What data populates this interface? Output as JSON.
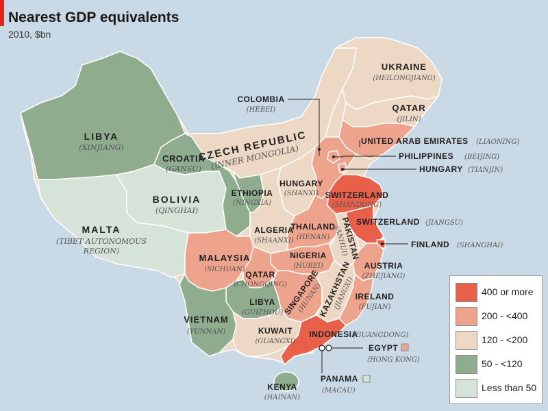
{
  "header": {
    "title": "Nearest GDP equivalents",
    "subtitle": "2010, $bn"
  },
  "colors": {
    "c400": "#e8604a",
    "c200": "#eea38c",
    "c120": "#ecd8c4",
    "c50": "#8fac8f",
    "c0": "#d5e3d8",
    "sea": "#c9d9e6"
  },
  "legend": {
    "items": [
      {
        "label": "400 or more",
        "color": "#e8604a"
      },
      {
        "label": "200 - <400",
        "color": "#eea38c"
      },
      {
        "label": "120 - <200",
        "color": "#ecd8c4"
      },
      {
        "label": "50 - <120",
        "color": "#8fac8f"
      },
      {
        "label": "Less than 50",
        "color": "#d5e3d8"
      }
    ]
  },
  "regions": {
    "xinjiang": {
      "country": "LIBYA",
      "province": "(XINJIANG)"
    },
    "tibet": {
      "country": "MALTA",
      "province_lines": [
        "(TIBET AUTONOMOUS",
        "REGION)"
      ]
    },
    "qinghai": {
      "country": "BOLIVIA",
      "province": "(QINGHAI)"
    },
    "gansu": {
      "country": "CROATIA",
      "province": "(GANSU)"
    },
    "innermongolia": {
      "country": "CZECH REPUBLIC",
      "province": "(INNER MONGOLIA)"
    },
    "ningxia": {
      "country": "ETHIOPIA",
      "province": "(NINGXIA)"
    },
    "shanxi": {
      "country": "HUNGARY",
      "province": "(SHANXI)"
    },
    "shaanxi": {
      "country": "ALGERIA",
      "province": "(SHAANXI)"
    },
    "henan": {
      "country": "THAILAND",
      "province": "(HENAN)"
    },
    "shandong": {
      "country": "SWITZERLAND",
      "province": "(SHANDONG)"
    },
    "anhui": {
      "country": "PAKISTAN",
      "province": "(ANHUI)"
    },
    "hubei": {
      "country": "NIGERIA",
      "province": "(HUBEI)"
    },
    "sichuan": {
      "country": "MALAYSIA",
      "province": "(SICHUAN)"
    },
    "chongqing": {
      "country": "QATAR",
      "province": "(CHONGQING)"
    },
    "hunan": {
      "country": "SINGAPORE",
      "province": "(HUNAN)"
    },
    "jiangxi": {
      "country": "KAZAKHSTAN",
      "province": "(JIANGXI)"
    },
    "zhejiang": {
      "country": "AUSTRIA",
      "province": "(ZHEJIANG)"
    },
    "fujian": {
      "country": "IRELAND",
      "province": "(FUJIAN)"
    },
    "guizhou": {
      "country": "LIBYA",
      "province": "(GUIZHOU)"
    },
    "yunnan": {
      "country": "VIETNAM",
      "province": "(YUNNAN)"
    },
    "guangxi": {
      "country": "KUWAIT",
      "province": "(GUANGXI)"
    },
    "guangdong": {
      "country": "INDONESIA",
      "province": "(GUANGDONG)"
    },
    "heilongjiang": {
      "country": "UKRAINE",
      "province": "(HEILONGJIANG)"
    },
    "jilin": {
      "country": "QATAR",
      "province": "(JILIN)"
    }
  },
  "callouts": {
    "hebei": {
      "country": "COLOMBIA",
      "province": "(HEBEI)"
    },
    "liaoning": {
      "country": "UNITED ARAB EMIRATES",
      "province": "(LIAONING)"
    },
    "beijing": {
      "country": "PHILIPPINES",
      "province": "(BEIJING)"
    },
    "tianjin": {
      "country": "HUNGARY",
      "province": "(TIANJIN)"
    },
    "jiangsu": {
      "country": "SWITZERLAND",
      "province": "(JIANGSU)"
    },
    "shanghai": {
      "country": "FINLAND",
      "province": "(SHANGHAI)"
    },
    "hongkong": {
      "country": "EGYPT",
      "province": "(HONG KONG)"
    },
    "macau": {
      "country": "PANAMA",
      "province": "(MACAU)"
    },
    "hainan": {
      "country": "KENYA",
      "province": "(HAINAN)"
    }
  }
}
